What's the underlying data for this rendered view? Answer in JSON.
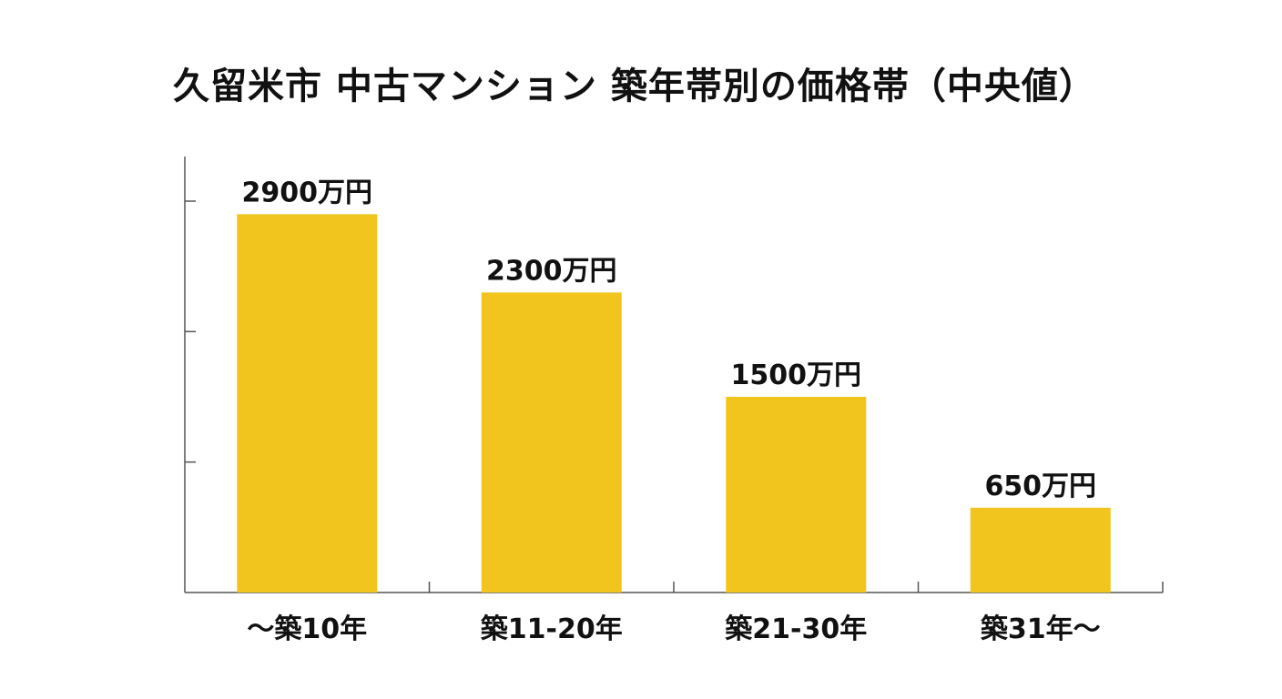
{
  "chart_data": {
    "type": "bar",
    "title": "久留米市 中古マンション 築年帯別の価格帯（中央値）",
    "xlabel": "",
    "ylabel": "",
    "categories": [
      "～築10年",
      "築11-20年",
      "築21-30年",
      "築31年～"
    ],
    "values": [
      2900,
      2300,
      1500,
      650
    ],
    "value_labels": [
      "2900万円",
      "2300万円",
      "1500万円",
      "650万円"
    ],
    "ylim": [
      0,
      3000
    ],
    "grid": false,
    "legend": "none",
    "bar_color": "#F2C51E",
    "axis_color": "#555555"
  }
}
